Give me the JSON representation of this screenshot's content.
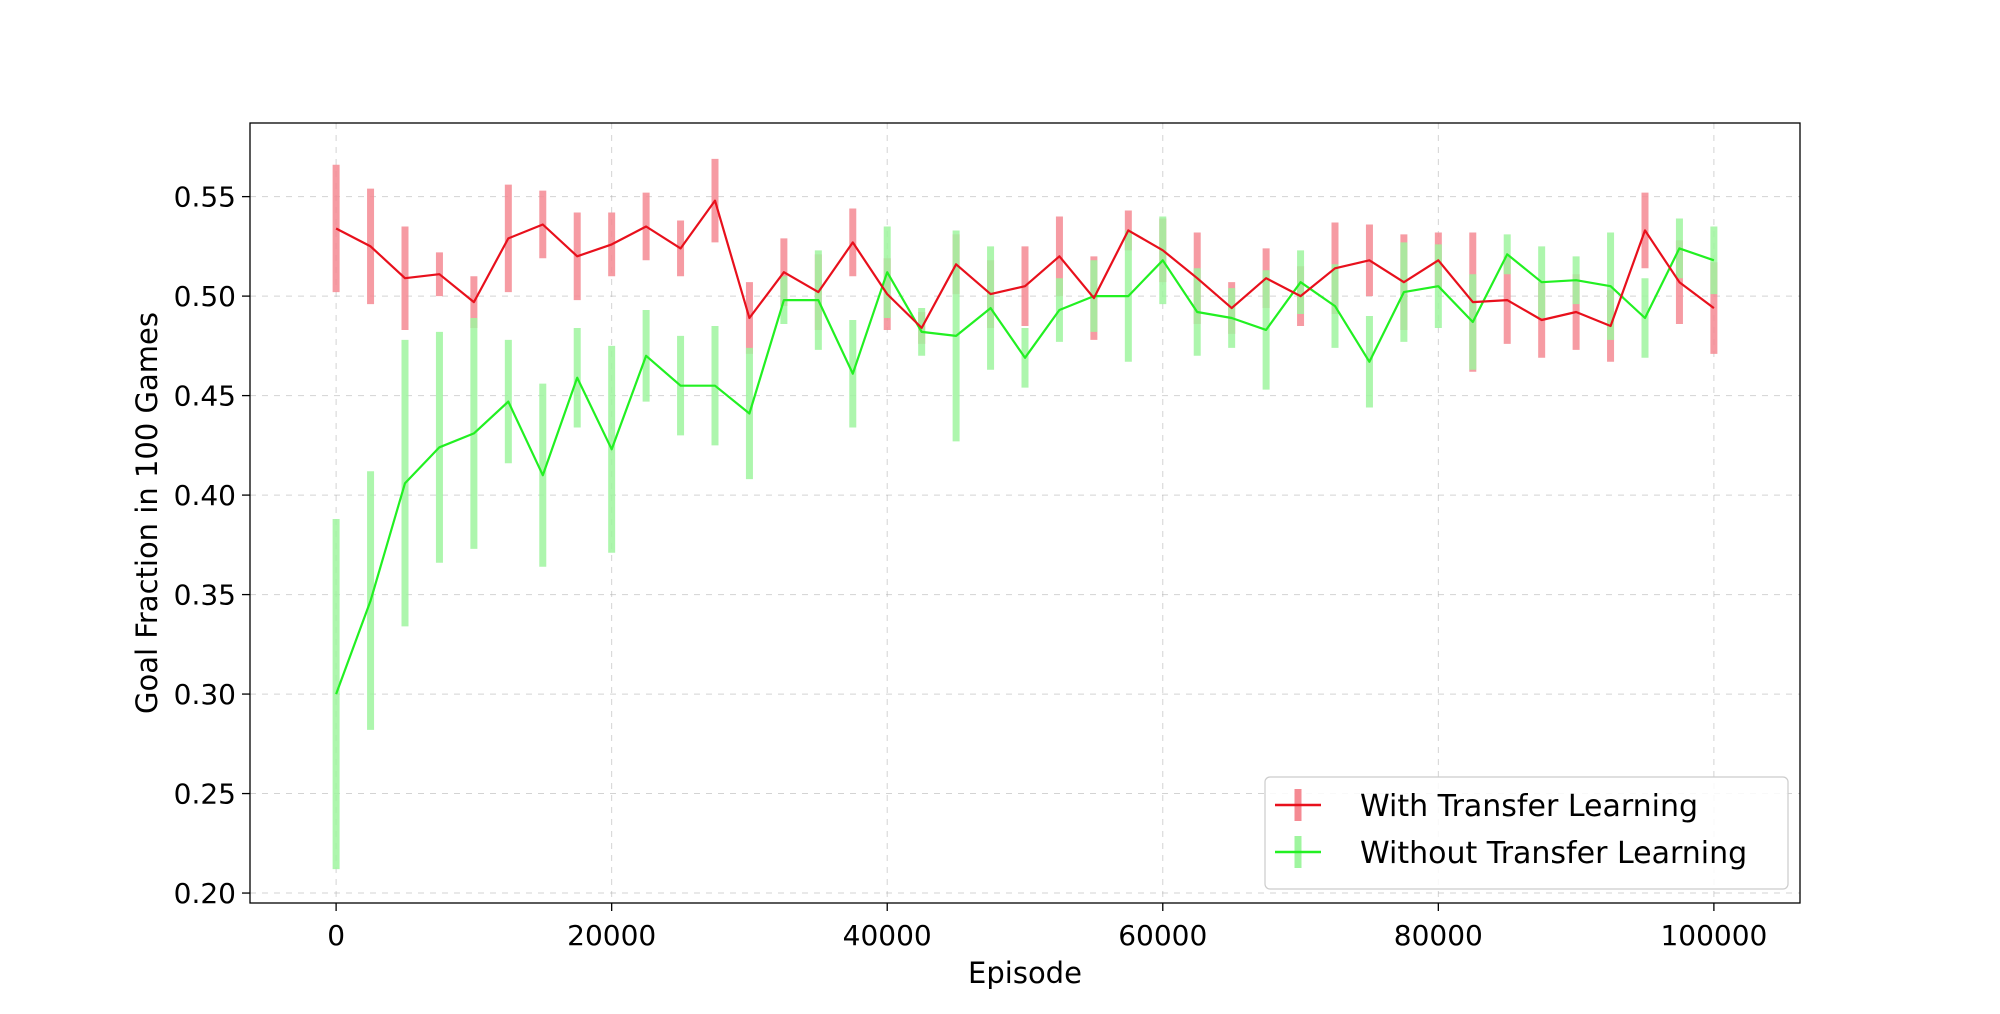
{
  "chart_data": {
    "type": "line",
    "title": "",
    "xlabel": "Episode",
    "ylabel": "Goal Fraction in 100 Games",
    "xlim": [
      -6250,
      106250
    ],
    "ylim": [
      0.195,
      0.587
    ],
    "xticks": [
      0,
      20000,
      40000,
      60000,
      80000,
      100000
    ],
    "yticks": [
      0.2,
      0.25,
      0.3,
      0.35,
      0.4,
      0.45,
      0.5,
      0.55
    ],
    "xtick_labels": [
      "0",
      "20000",
      "40000",
      "60000",
      "80000",
      "100000"
    ],
    "ytick_labels": [
      "0.20",
      "0.25",
      "0.30",
      "0.35",
      "0.40",
      "0.45",
      "0.50",
      "0.55"
    ],
    "grid": true,
    "legend_position": "lower-right",
    "x": [
      0,
      2500,
      5000,
      7500,
      10000,
      12500,
      15000,
      17500,
      20000,
      22500,
      25000,
      27500,
      30000,
      32500,
      35000,
      37500,
      40000,
      42500,
      45000,
      47500,
      50000,
      52500,
      55000,
      57500,
      60000,
      62500,
      65000,
      67500,
      70000,
      72500,
      75000,
      77500,
      80000,
      82500,
      85000,
      87500,
      90000,
      92500,
      95000,
      97500,
      100000
    ],
    "series": [
      {
        "name": "With Transfer Learning",
        "color": "#e8101c",
        "errcolor": "#f58a93",
        "values": [
          0.534,
          0.525,
          0.509,
          0.511,
          0.497,
          0.529,
          0.536,
          0.52,
          0.526,
          0.535,
          0.524,
          0.548,
          0.489,
          0.512,
          0.502,
          0.527,
          0.501,
          0.484,
          0.516,
          0.501,
          0.505,
          0.52,
          0.499,
          0.533,
          0.523,
          0.509,
          0.494,
          0.509,
          0.5,
          0.514,
          0.518,
          0.507,
          0.518,
          0.497,
          0.498,
          0.488,
          0.492,
          0.485,
          0.533,
          0.507,
          0.494
        ],
        "errors": [
          0.032,
          0.029,
          0.026,
          0.011,
          0.013,
          0.027,
          0.017,
          0.022,
          0.016,
          0.017,
          0.014,
          0.021,
          0.018,
          0.017,
          0.019,
          0.017,
          0.018,
          0.008,
          0.015,
          0.017,
          0.02,
          0.02,
          0.021,
          0.01,
          0.016,
          0.023,
          0.013,
          0.015,
          0.015,
          0.023,
          0.018,
          0.024,
          0.014,
          0.035,
          0.022,
          0.019,
          0.019,
          0.018,
          0.019,
          0.021,
          0.023
        ]
      },
      {
        "name": "Without Transfer Learning",
        "color": "#22f022",
        "errcolor": "#9ff59f",
        "values": [
          0.3,
          0.347,
          0.406,
          0.424,
          0.431,
          0.447,
          0.41,
          0.459,
          0.423,
          0.47,
          0.455,
          0.455,
          0.441,
          0.498,
          0.498,
          0.461,
          0.512,
          0.482,
          0.48,
          0.494,
          0.469,
          0.493,
          0.5,
          0.5,
          0.518,
          0.492,
          0.489,
          0.483,
          0.507,
          0.495,
          0.467,
          0.502,
          0.505,
          0.487,
          0.521,
          0.507,
          0.508,
          0.505,
          0.489,
          0.524,
          0.518
        ],
        "errors": [
          0.088,
          0.065,
          0.072,
          0.058,
          0.058,
          0.031,
          0.046,
          0.025,
          0.052,
          0.023,
          0.025,
          0.03,
          0.033,
          0.012,
          0.025,
          0.027,
          0.023,
          0.012,
          0.053,
          0.031,
          0.015,
          0.016,
          0.018,
          0.033,
          0.022,
          0.022,
          0.015,
          0.03,
          0.016,
          0.021,
          0.023,
          0.025,
          0.021,
          0.024,
          0.01,
          0.018,
          0.012,
          0.027,
          0.02,
          0.015,
          0.017
        ]
      }
    ]
  }
}
